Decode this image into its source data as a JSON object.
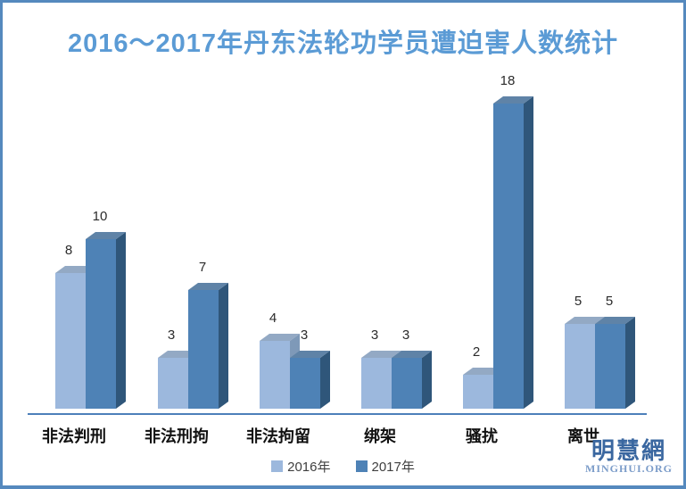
{
  "page": {
    "background": "#ffffff",
    "border_color": "#5589be"
  },
  "chart_data": {
    "type": "bar",
    "subtype": "3d-clustered-column",
    "title": "2016～2017年丹东法轮功学员遭迫害人数统计",
    "title_color": "#5b9bd5",
    "categories": [
      "非法判刑",
      "非法刑拘",
      "非法拘留",
      "绑架",
      "骚扰",
      "离世"
    ],
    "series": [
      {
        "name": "2016年",
        "values": [
          8,
          3,
          4,
          3,
          2,
          5
        ],
        "colors": {
          "front": "#9cb8dd",
          "top": "#93a9c4",
          "side": "#7e99b8"
        }
      },
      {
        "name": "2017年",
        "values": [
          10,
          7,
          3,
          3,
          18,
          5
        ],
        "colors": {
          "front": "#4e82b6",
          "top": "#5f83a7",
          "side": "#2f567a"
        }
      }
    ],
    "value_labels_visible": true,
    "value_label_color": "#2b2b2b",
    "ylim": [
      0,
      18
    ],
    "axis_line_color": "#4d80ba",
    "grid": false,
    "legend_position": "bottom"
  },
  "watermark": {
    "cn": "明慧網",
    "en": "MINGHUI.ORG"
  }
}
